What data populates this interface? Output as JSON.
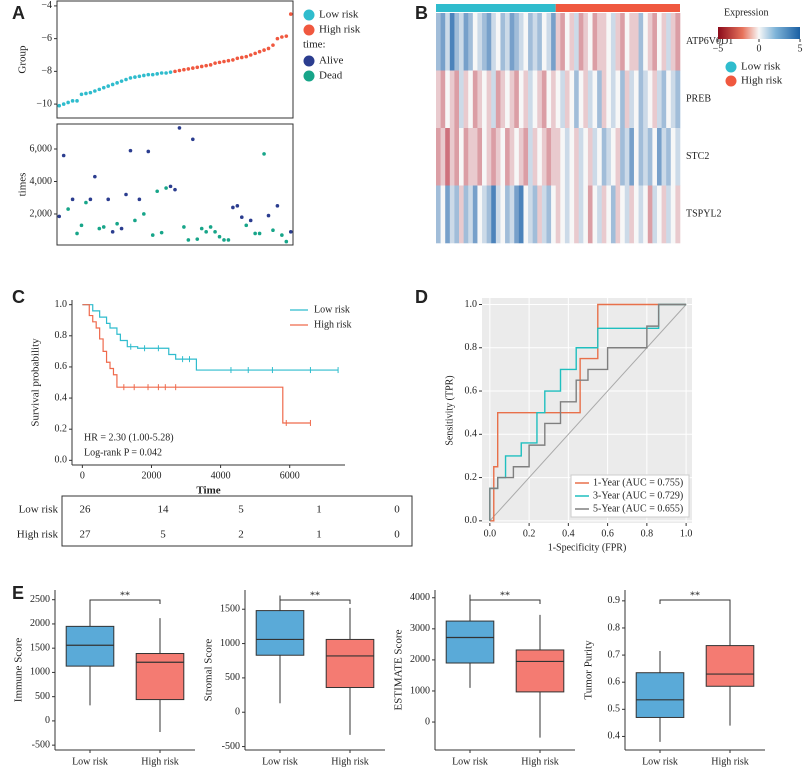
{
  "chart_data": [
    {
      "panel": "A",
      "type": "scatter",
      "ylabel": "Group",
      "ylim": [
        -10.85,
        -3.7
      ],
      "yticks": [
        {
          "value": -10,
          "label": "−10"
        },
        {
          "value": -8,
          "label": "−8"
        },
        {
          "value": -6,
          "label": "−6"
        },
        {
          "value": -4,
          "label": "−4"
        }
      ],
      "series": [
        {
          "name": "Low risk",
          "color": "#2fbccd",
          "values": [
            -10.1,
            -10.0,
            -9.9,
            -9.8,
            -9.8,
            -9.4,
            -9.35,
            -9.3,
            -9.2,
            -9.1,
            -9.0,
            -8.9,
            -8.8,
            -8.7,
            -8.6,
            -8.5,
            -8.4,
            -8.35,
            -8.3,
            -8.25,
            -8.2,
            -8.2,
            -8.15,
            -8.1,
            -8.1,
            -8.05,
            null,
            null,
            null,
            null,
            null,
            null,
            null,
            null,
            null,
            null,
            null,
            null,
            null,
            null,
            null,
            null,
            null,
            null,
            null,
            null,
            null,
            null,
            null,
            null,
            null,
            null,
            null
          ]
        },
        {
          "name": "High risk",
          "color": "#f0583f",
          "values": [
            null,
            null,
            null,
            null,
            null,
            null,
            null,
            null,
            null,
            null,
            null,
            null,
            null,
            null,
            null,
            null,
            null,
            null,
            null,
            null,
            null,
            null,
            null,
            null,
            null,
            null,
            -8.0,
            -7.95,
            -7.9,
            -7.85,
            -7.8,
            -7.75,
            -7.7,
            -7.65,
            -7.6,
            -7.5,
            -7.45,
            -7.4,
            -7.35,
            -7.3,
            -7.2,
            -7.15,
            -7.1,
            -7.0,
            -6.9,
            -6.8,
            -6.7,
            -6.6,
            -6.4,
            -6.0,
            -5.9,
            -5.85,
            -4.5
          ]
        }
      ]
    },
    {
      "type": "scatter",
      "ylabel": "times",
      "legend_title": "time:",
      "ylim": [
        90,
        7540
      ],
      "yticks": [
        {
          "value": 2000,
          "label": "2,000"
        },
        {
          "value": 4000,
          "label": "4,000"
        },
        {
          "value": 6000,
          "label": "6,000"
        }
      ],
      "series": [
        {
          "name": "Alive",
          "color": "#2b3d8f",
          "values": [
            1850,
            5600,
            null,
            2900,
            null,
            null,
            null,
            2900,
            4300,
            null,
            null,
            2900,
            900,
            null,
            1100,
            3200,
            5900,
            null,
            2900,
            null,
            5850,
            null,
            null,
            null,
            null,
            3700,
            3500,
            7300,
            null,
            null,
            6600,
            null,
            null,
            null,
            null,
            null,
            null,
            null,
            null,
            2400,
            2500,
            1800,
            null,
            1600,
            null,
            null,
            null,
            1900,
            null,
            2500,
            null,
            null,
            900
          ]
        },
        {
          "name": "Dead",
          "color": "#17a589",
          "values": [
            null,
            null,
            2300,
            null,
            800,
            1300,
            2700,
            null,
            null,
            1100,
            1200,
            null,
            null,
            1400,
            null,
            null,
            null,
            1600,
            null,
            2000,
            null,
            700,
            3400,
            850,
            3600,
            null,
            null,
            null,
            1200,
            400,
            null,
            450,
            1100,
            900,
            1200,
            900,
            600,
            400,
            400,
            null,
            null,
            null,
            1300,
            null,
            800,
            800,
            5700,
            null,
            1000,
            null,
            700,
            300,
            null
          ]
        }
      ]
    },
    {
      "panel": "B",
      "type": "heatmap",
      "rows": [
        "ATP6V0D1",
        "PREB",
        "STC2",
        "TSPYL2"
      ],
      "values": [
        [
          2,
          3,
          1,
          4,
          2,
          1,
          3,
          2,
          0,
          1,
          2,
          3,
          1,
          0,
          2,
          1,
          3,
          2,
          1,
          0,
          2,
          1,
          2,
          0,
          1,
          3,
          -1,
          -2,
          0,
          -1,
          1,
          -2,
          -1,
          0,
          -2,
          -1,
          -1,
          0,
          1,
          -1,
          -2,
          0,
          -1,
          -1,
          2,
          0,
          -1,
          -2,
          0,
          -1,
          1,
          -1,
          -2
        ],
        [
          -1,
          -2,
          0,
          -1,
          -2,
          1,
          -1,
          0,
          -2,
          -1,
          0,
          -1,
          1,
          -2,
          -1,
          0,
          -1,
          -2,
          0,
          -1,
          1,
          0,
          -1,
          -2,
          0,
          -1,
          0,
          1,
          -1,
          0,
          2,
          0,
          -1,
          1,
          0,
          2,
          -1,
          0,
          1,
          0,
          2,
          -1,
          1,
          0,
          2,
          1,
          0,
          -1,
          1,
          2,
          0,
          1,
          2
        ],
        [
          -2,
          -1,
          -3,
          -1,
          -2,
          0,
          -2,
          -1,
          -1,
          -2,
          0,
          -1,
          -2,
          -1,
          0,
          -2,
          -1,
          0,
          -1,
          -2,
          1,
          -1,
          0,
          -1,
          -2,
          -1,
          -1,
          0,
          1,
          0,
          -1,
          1,
          0,
          -1,
          1,
          0,
          2,
          1,
          0,
          -1,
          2,
          1,
          3,
          0,
          2,
          1,
          2,
          0,
          3,
          1,
          2,
          0,
          1
        ],
        [
          2,
          0,
          3,
          1,
          2,
          -1,
          2,
          1,
          3,
          0,
          1,
          2,
          4,
          1,
          0,
          2,
          1,
          3,
          4,
          0,
          1,
          2,
          -1,
          1,
          2,
          0,
          -1,
          0,
          1,
          0,
          -1,
          1,
          0,
          -2,
          0,
          1,
          -1,
          0,
          2,
          -1,
          0,
          1,
          -1,
          0,
          1,
          0,
          -2,
          1,
          0,
          -1,
          1,
          0,
          -1
        ]
      ],
      "groups": [
        {
          "name": "Low risk",
          "color": "#2fbccd",
          "size": 26
        },
        {
          "name": "High risk",
          "color": "#f0583f",
          "size": 27
        }
      ],
      "colorbar_title": "Expression",
      "clim": [
        -5,
        5
      ],
      "cticks": [
        {
          "value": -5,
          "label": "−5"
        },
        0,
        5
      ]
    },
    {
      "panel": "C",
      "type": "survival",
      "xlabel": "Time",
      "ylabel": "Survival probability",
      "xlim": [
        -300,
        7600
      ],
      "xticks": [
        0,
        2000,
        4000,
        6000
      ],
      "ylim": [
        -0.03,
        1.03
      ],
      "yticks": [
        {
          "value": 0,
          "label": "0.0"
        },
        0.2,
        0.4,
        0.6,
        0.8,
        {
          "value": 1,
          "label": "1.0"
        }
      ],
      "series": [
        {
          "name": "Low risk",
          "color": "#2fbccd",
          "x": [
            0,
            300,
            500,
            700,
            800,
            1000,
            1100,
            1300,
            1600,
            2500,
            2700,
            3300,
            7400
          ],
          "values": [
            1,
            0.96,
            0.92,
            0.88,
            0.85,
            0.81,
            0.77,
            0.73,
            0.72,
            0.68,
            0.65,
            0.58,
            0.58
          ],
          "censor": [
            1400,
            1800,
            2200,
            2900,
            3100,
            4300,
            4800,
            5500,
            6600,
            7400
          ]
        },
        {
          "name": "High risk",
          "color": "#ef6a4c",
          "x": [
            0,
            200,
            300,
            400,
            500,
            600,
            700,
            800,
            900,
            1000,
            5800,
            6600
          ],
          "values": [
            1,
            0.93,
            0.89,
            0.85,
            0.78,
            0.7,
            0.63,
            0.59,
            0.55,
            0.47,
            0.24,
            0.24
          ],
          "censor": [
            1200,
            1500,
            1900,
            2200,
            2400,
            2700,
            5900,
            6600
          ]
        }
      ],
      "annotations": [
        "HR = 2.30 (1.00-5.28)",
        "Log-rank P = 0.042"
      ],
      "risk_table": [
        {
          "name": "Low risk",
          "values": [
            26,
            14,
            5,
            1,
            0
          ]
        },
        {
          "name": "High risk",
          "values": [
            27,
            5,
            2,
            1,
            0
          ]
        }
      ]
    },
    {
      "panel": "D",
      "type": "line",
      "xlabel": "1-Specificity (FPR)",
      "ylabel": "Sensitivity (TPR)",
      "xlim": [
        -0.04,
        1.03
      ],
      "ylim": [
        -0.01,
        1.03
      ],
      "grid": true,
      "legend": "bottom-right",
      "xticks": [
        {
          "value": 0,
          "label": "0.0"
        },
        0.2,
        0.4,
        0.6,
        0.8,
        {
          "value": 1,
          "label": "1.0"
        }
      ],
      "yticks": [
        {
          "value": 0,
          "label": "0.0"
        },
        0.2,
        0.4,
        0.6,
        0.8,
        {
          "value": 1,
          "label": "1.0"
        }
      ],
      "series": [
        {
          "name": "1-Year (AUC = 0.755)",
          "color": "#e8704a",
          "x": [
            0,
            0.02,
            0.02,
            0.04,
            0.04,
            0.46,
            0.46,
            0.55,
            0.55,
            1
          ],
          "values": [
            0,
            0,
            0.25,
            0.25,
            0.5,
            0.5,
            0.75,
            0.75,
            1,
            1
          ]
        },
        {
          "name": "3-Year (AUC = 0.729)",
          "color": "#1fbfbf",
          "x": [
            0,
            0,
            0.04,
            0.04,
            0.08,
            0.08,
            0.16,
            0.16,
            0.24,
            0.24,
            0.28,
            0.28,
            0.36,
            0.36,
            0.44,
            0.44,
            0.55,
            0.55,
            0.62,
            0.62,
            0.86,
            0.86,
            1
          ],
          "values": [
            0,
            0.15,
            0.15,
            0.2,
            0.2,
            0.3,
            0.3,
            0.36,
            0.36,
            0.5,
            0.5,
            0.6,
            0.6,
            0.7,
            0.7,
            0.8,
            0.8,
            0.89,
            0.89,
            0.89,
            0.89,
            1,
            1
          ]
        },
        {
          "name": "5-Year (AUC = 0.655)",
          "color": "#7f7f7f",
          "x": [
            0,
            0,
            0.04,
            0.04,
            0.12,
            0.12,
            0.2,
            0.2,
            0.28,
            0.28,
            0.36,
            0.36,
            0.44,
            0.44,
            0.5,
            0.5,
            0.6,
            0.6,
            0.8,
            0.8,
            0.86,
            0.86,
            1
          ],
          "values": [
            0,
            0.15,
            0.15,
            0.2,
            0.2,
            0.25,
            0.25,
            0.35,
            0.35,
            0.45,
            0.45,
            0.55,
            0.55,
            0.65,
            0.65,
            0.7,
            0.7,
            0.8,
            0.8,
            0.9,
            0.9,
            1,
            1
          ]
        }
      ]
    },
    {
      "panel": "E",
      "type": "box",
      "ylabel": "Immune Score",
      "categories": [
        "Low risk",
        "High risk"
      ],
      "significance": "**",
      "ylim": [
        -600,
        2700
      ],
      "yticks": [
        -500,
        0,
        500,
        1000,
        1500,
        2000,
        2500
      ],
      "boxes": [
        {
          "min": 320,
          "q1": 1130,
          "median": 1560,
          "q3": 1950,
          "max": 2500,
          "color": "#5aaad8"
        },
        {
          "min": -230,
          "q1": 440,
          "median": 1210,
          "q3": 1390,
          "max": 2120,
          "color": "#f47b72"
        }
      ]
    },
    {
      "type": "box",
      "ylabel": "Stromal Score",
      "categories": [
        "Low risk",
        "High risk"
      ],
      "significance": "**",
      "ylim": [
        -550,
        1780
      ],
      "yticks": [
        -500,
        0,
        500,
        1000,
        1500
      ],
      "boxes": [
        {
          "min": 130,
          "q1": 830,
          "median": 1060,
          "q3": 1480,
          "max": 1700,
          "color": "#5aaad8"
        },
        {
          "min": -330,
          "q1": 360,
          "median": 820,
          "q3": 1060,
          "max": 1520,
          "color": "#f47b72"
        }
      ]
    },
    {
      "type": "box",
      "ylabel": "ESTIMATE Score",
      "categories": [
        "Low risk",
        "High risk"
      ],
      "significance": "**",
      "ylim": [
        -900,
        4250
      ],
      "yticks": [
        0,
        1000,
        2000,
        3000,
        4000
      ],
      "boxes": [
        {
          "min": 1100,
          "q1": 1900,
          "median": 2720,
          "q3": 3250,
          "max": 4100,
          "color": "#5aaad8"
        },
        {
          "min": -500,
          "q1": 970,
          "median": 1950,
          "q3": 2320,
          "max": 3450,
          "color": "#f47b72"
        }
      ]
    },
    {
      "type": "box",
      "ylabel": "Tumor Purity",
      "categories": [
        "Low risk",
        "High risk"
      ],
      "significance": "**",
      "ylim": [
        0.35,
        0.94
      ],
      "yticks": [
        0.4,
        0.5,
        0.6,
        0.7,
        0.8,
        0.9
      ],
      "boxes": [
        {
          "min": 0.38,
          "q1": 0.47,
          "median": 0.535,
          "q3": 0.635,
          "max": 0.715,
          "color": "#5aaad8"
        },
        {
          "min": 0.44,
          "q1": 0.585,
          "median": 0.63,
          "q3": 0.735,
          "max": 0.9,
          "color": "#f47b72"
        }
      ]
    }
  ]
}
